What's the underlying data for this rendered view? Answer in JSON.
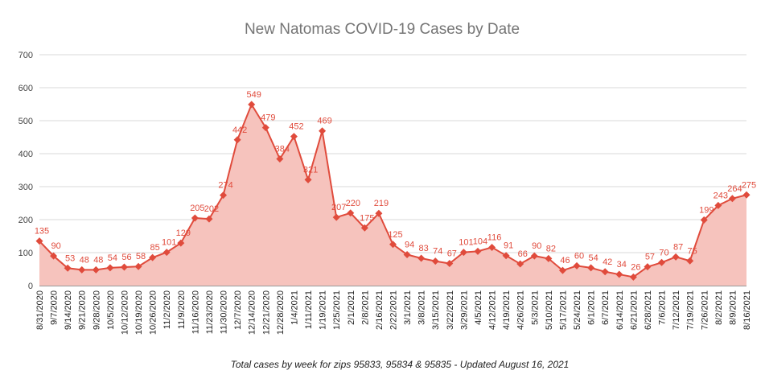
{
  "chart_data": {
    "type": "area",
    "title": "New Natomas COVID-19 Cases by Date",
    "subtitle": "Total cases by week for zips 95833, 95834 & 95835 - Updated August 16, 2021",
    "xlabel": "",
    "ylabel": "",
    "ylim": [
      0,
      700
    ],
    "yticks": [
      0,
      100,
      200,
      300,
      400,
      500,
      600,
      700
    ],
    "grid": true,
    "legend": "none",
    "colors": {
      "line": "#e04b3c",
      "fill": "#f6c3bd",
      "grid": "#d9d9d9",
      "label": "#e04b3c"
    },
    "categories": [
      "8/31/2020",
      "9/7/2020",
      "9/14/2020",
      "9/21/2020",
      "9/28/2020",
      "10/5/2020",
      "10/12/2020",
      "10/19/2020",
      "10/26/2020",
      "11/2/2020",
      "11/9/2020",
      "11/16/2020",
      "11/23/2020",
      "11/30/2020",
      "12/7/2020",
      "12/14/2020",
      "12/21/2020",
      "12/28/2020",
      "1/4/2021",
      "1/11/2021",
      "1/19/2021",
      "1/25/2021",
      "2/1/2021",
      "2/8/2021",
      "2/16/2021",
      "2/22/2021",
      "3/1/2021",
      "3/8/2021",
      "3/15/2021",
      "3/22/2021",
      "3/29/2021",
      "4/5/2021",
      "4/12/2021",
      "4/19/2021",
      "4/26/2021",
      "5/3/2021",
      "5/10/2021",
      "5/17/2021",
      "5/24/2021",
      "6/1/2021",
      "6/7/2021",
      "6/14/2021",
      "6/21/2021",
      "6/28/2021",
      "7/6/2021",
      "7/12/2021",
      "7/19/2021",
      "7/26/2021",
      "8/2/2021",
      "8/9/2021",
      "8/16/2021"
    ],
    "values": [
      135,
      90,
      53,
      48,
      48,
      54,
      56,
      58,
      85,
      101,
      129,
      205,
      202,
      274,
      442,
      549,
      479,
      384,
      452,
      321,
      469,
      207,
      220,
      175,
      219,
      125,
      94,
      83,
      74,
      67,
      101,
      104,
      116,
      91,
      66,
      90,
      82,
      46,
      60,
      54,
      42,
      34,
      26,
      57,
      70,
      87,
      75,
      199,
      243,
      264,
      275
    ]
  }
}
